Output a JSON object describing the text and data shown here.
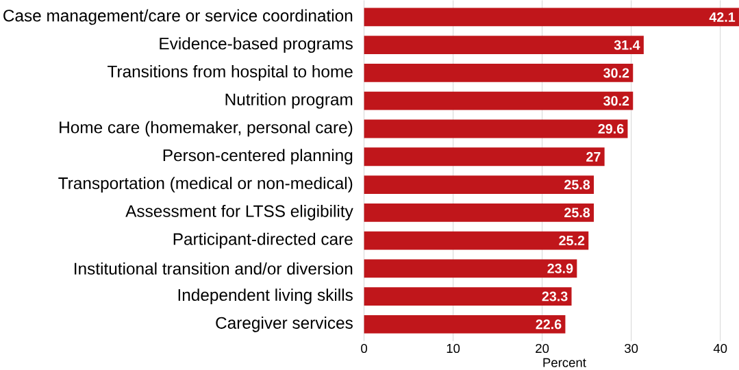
{
  "chart_data": {
    "type": "bar",
    "orientation": "horizontal",
    "xlabel": "Percent",
    "categories": [
      "Case management/care or service coordination",
      "Evidence-based programs",
      "Transitions from hospital to home",
      "Nutrition program",
      "Home care (homemaker, personal care)",
      "Person-centered planning",
      "Transportation (medical or non-medical)",
      "Assessment for LTSS eligibility",
      "Participant-directed care",
      "Institutional transition and/or diversion",
      "Independent living skills",
      "Caregiver services"
    ],
    "values": [
      42.1,
      31.4,
      30.2,
      30.2,
      29.6,
      27,
      25.8,
      25.8,
      25.2,
      23.9,
      23.3,
      22.6
    ],
    "color": "#c0161b",
    "xlim": [
      0,
      42.1
    ],
    "xticks": [
      0,
      10,
      20,
      30,
      40
    ],
    "grid": "x",
    "data_labels": true
  }
}
